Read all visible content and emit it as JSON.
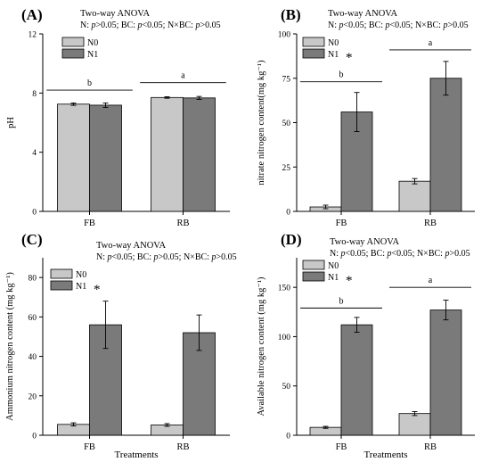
{
  "figure": {
    "colors": {
      "N0": "#c8c8c8",
      "N1": "#7a7a7a",
      "axis": "#000000"
    },
    "panels": [
      {
        "tag": "(A)",
        "anova_title": "Two-way ANOVA",
        "anova_line": "N: p>0.05; BC: p<0.05; N×BC: p>0.05",
        "legend": [
          "N0",
          "N1"
        ],
        "legend_star": "",
        "xlabel": "",
        "chart_data": {
          "type": "bar",
          "categories": [
            "FB",
            "RB"
          ],
          "series": [
            {
              "name": "N0",
              "values": [
                7.25,
                7.7
              ],
              "errors": [
                0.08,
                0.05
              ]
            },
            {
              "name": "N1",
              "values": [
                7.18,
                7.67
              ],
              "errors": [
                0.15,
                0.1
              ]
            }
          ],
          "ylabel": "pH",
          "ylim": [
            0,
            12
          ],
          "yticks": [
            0,
            4,
            8,
            12
          ],
          "group_labels": [
            "b",
            "a"
          ],
          "group_line_values": [
            8.2,
            8.7
          ],
          "star_groups": []
        }
      },
      {
        "tag": "(B)",
        "anova_title": "Two-way ANOVA",
        "anova_line": "N: p<0.05; BC: p<0.05; N×BC: p>0.05",
        "legend": [
          "N0",
          "N1"
        ],
        "legend_star": "*",
        "xlabel": "",
        "chart_data": {
          "type": "bar",
          "categories": [
            "FB",
            "RB"
          ],
          "series": [
            {
              "name": "N0",
              "values": [
                2.5,
                17
              ],
              "errors": [
                1,
                1.5
              ]
            },
            {
              "name": "N1",
              "values": [
                56,
                75
              ],
              "errors": [
                11,
                9.5
              ]
            }
          ],
          "ylabel": "nitrate nitrogen content(mg kg⁻¹)",
          "ylim": [
            0,
            100
          ],
          "yticks": [
            0,
            25,
            50,
            75,
            100
          ],
          "group_labels": [
            "b",
            "a"
          ],
          "group_line_values": [
            73,
            91
          ],
          "star_groups": []
        }
      },
      {
        "tag": "(C)",
        "anova_title": "Two-way ANOVA",
        "anova_line": "N: p<0.05; BC: p>0.05; N×BC: p>0.05",
        "legend": [
          "N0",
          "N1"
        ],
        "legend_star": "*",
        "xlabel": "Treatments",
        "chart_data": {
          "type": "bar",
          "categories": [
            "FB",
            "RB"
          ],
          "series": [
            {
              "name": "N0",
              "values": [
                5.5,
                5.2
              ],
              "errors": [
                0.8,
                0.7
              ]
            },
            {
              "name": "N1",
              "values": [
                56,
                52
              ],
              "errors": [
                12,
                9
              ]
            }
          ],
          "ylabel": "Ammonium nitrogen content (mg kg⁻¹)",
          "ylim": [
            0,
            90
          ],
          "yticks": [
            0,
            20,
            40,
            60,
            80
          ],
          "group_labels": [],
          "group_line_values": [],
          "star_groups": []
        }
      },
      {
        "tag": "(D)",
        "anova_title": "Two-way ANOVA",
        "anova_line": "N: p<0.05; BC: p<0.05; N×BC: p>0.05",
        "legend": [
          "N0",
          "N1"
        ],
        "legend_star": "*",
        "xlabel": "Treatments",
        "chart_data": {
          "type": "bar",
          "categories": [
            "FB",
            "RB"
          ],
          "series": [
            {
              "name": "N0",
              "values": [
                8,
                22
              ],
              "errors": [
                1,
                2
              ]
            },
            {
              "name": "N1",
              "values": [
                112,
                127
              ],
              "errors": [
                7.5,
                10
              ]
            }
          ],
          "ylabel": "Available nitrogen content (mg kg⁻¹)",
          "ylim": [
            0,
            180
          ],
          "yticks": [
            0,
            50,
            100,
            150
          ],
          "group_labels": [
            "b",
            "a"
          ],
          "group_line_values": [
            129,
            150
          ],
          "star_groups": []
        }
      }
    ]
  }
}
